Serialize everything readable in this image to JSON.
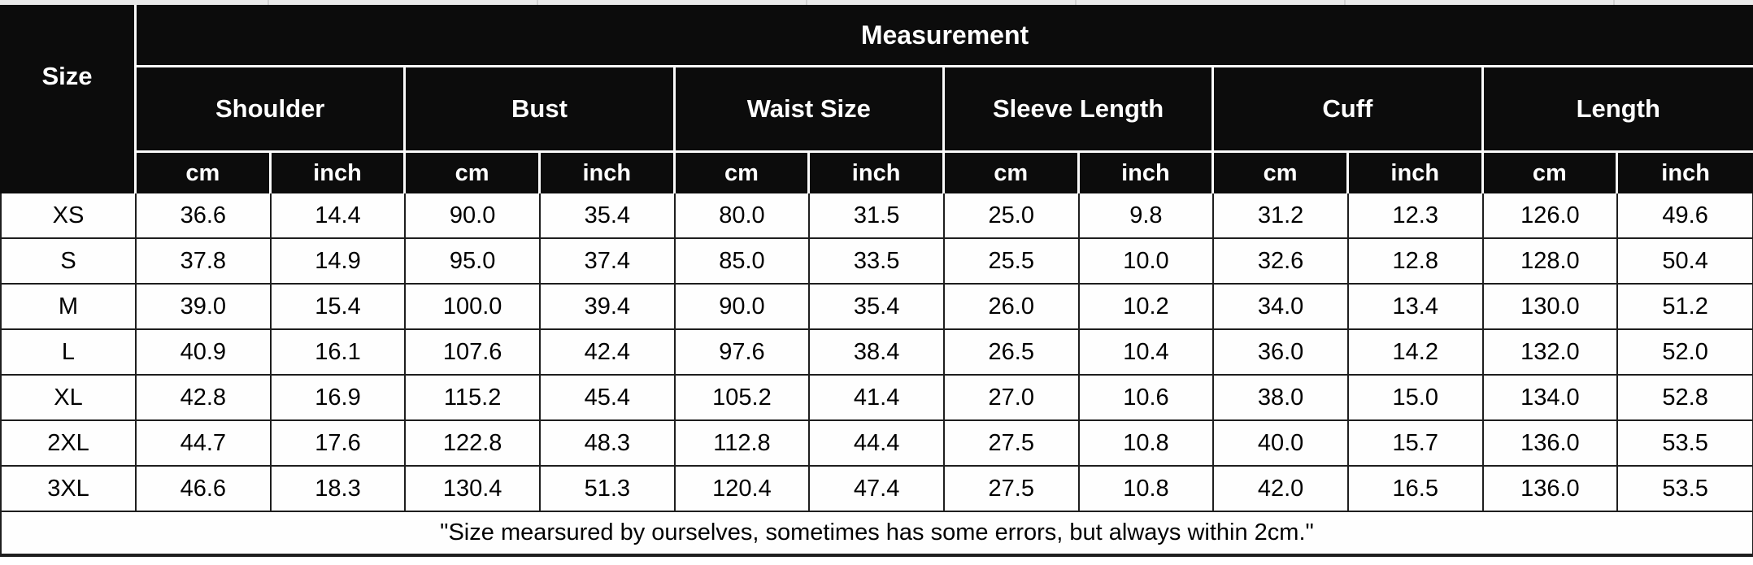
{
  "colors": {
    "header_bg": "#0c0c0c",
    "header_text": "#ffffff",
    "body_bg": "#fefefe",
    "body_text": "#000000",
    "grid_line": "#1e1e1e",
    "header_divider": "#fafafa",
    "top_strip": "#eaeaea"
  },
  "chart_data": {
    "type": "table",
    "corner_header": "Size",
    "top_header": "Measurement",
    "column_groups": [
      "Shoulder",
      "Bust",
      "Waist Size",
      "Sleeve Length",
      "Cuff",
      "Length"
    ],
    "unit_headers": [
      "cm",
      "inch"
    ],
    "rows": [
      {
        "size": "XS",
        "values": [
          "36.6",
          "14.4",
          "90.0",
          "35.4",
          "80.0",
          "31.5",
          "25.0",
          "9.8",
          "31.2",
          "12.3",
          "126.0",
          "49.6"
        ]
      },
      {
        "size": "S",
        "values": [
          "37.8",
          "14.9",
          "95.0",
          "37.4",
          "85.0",
          "33.5",
          "25.5",
          "10.0",
          "32.6",
          "12.8",
          "128.0",
          "50.4"
        ]
      },
      {
        "size": "M",
        "values": [
          "39.0",
          "15.4",
          "100.0",
          "39.4",
          "90.0",
          "35.4",
          "26.0",
          "10.2",
          "34.0",
          "13.4",
          "130.0",
          "51.2"
        ]
      },
      {
        "size": "L",
        "values": [
          "40.9",
          "16.1",
          "107.6",
          "42.4",
          "97.6",
          "38.4",
          "26.5",
          "10.4",
          "36.0",
          "14.2",
          "132.0",
          "52.0"
        ]
      },
      {
        "size": "XL",
        "values": [
          "42.8",
          "16.9",
          "115.2",
          "45.4",
          "105.2",
          "41.4",
          "27.0",
          "10.6",
          "38.0",
          "15.0",
          "134.0",
          "52.8"
        ]
      },
      {
        "size": "2XL",
        "values": [
          "44.7",
          "17.6",
          "122.8",
          "48.3",
          "112.8",
          "44.4",
          "27.5",
          "10.8",
          "40.0",
          "15.7",
          "136.0",
          "53.5"
        ]
      },
      {
        "size": "3XL",
        "values": [
          "46.6",
          "18.3",
          "130.4",
          "51.3",
          "120.4",
          "47.4",
          "27.5",
          "10.8",
          "42.0",
          "16.5",
          "136.0",
          "53.5"
        ]
      }
    ],
    "footnote": "\"Size mearsured by ourselves, sometimes has some errors, but always within 2cm.\""
  }
}
